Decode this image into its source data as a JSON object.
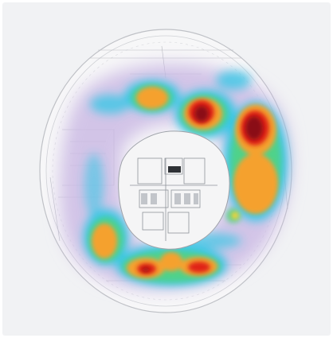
{
  "image": {
    "subject": "floor-plan-heatmap",
    "colors": {
      "background": "#f1f2f4",
      "low": "#c9b8e4",
      "cool": "#38c7e6",
      "mid": "#4fd28a",
      "warm": "#f5a12e",
      "hot": "#e02418",
      "peak": "#8a0a12"
    },
    "hotspots": [
      {
        "zone": "north-left",
        "intensity": 0.75
      },
      {
        "zone": "north-center",
        "intensity": 1.0
      },
      {
        "zone": "east-upper",
        "intensity": 1.0
      },
      {
        "zone": "east-lower",
        "intensity": 0.8
      },
      {
        "zone": "south-west",
        "intensity": 0.75
      },
      {
        "zone": "south-center-left",
        "intensity": 0.95
      },
      {
        "zone": "south-center",
        "intensity": 0.8
      },
      {
        "zone": "south-center-right",
        "intensity": 0.9
      }
    ]
  }
}
